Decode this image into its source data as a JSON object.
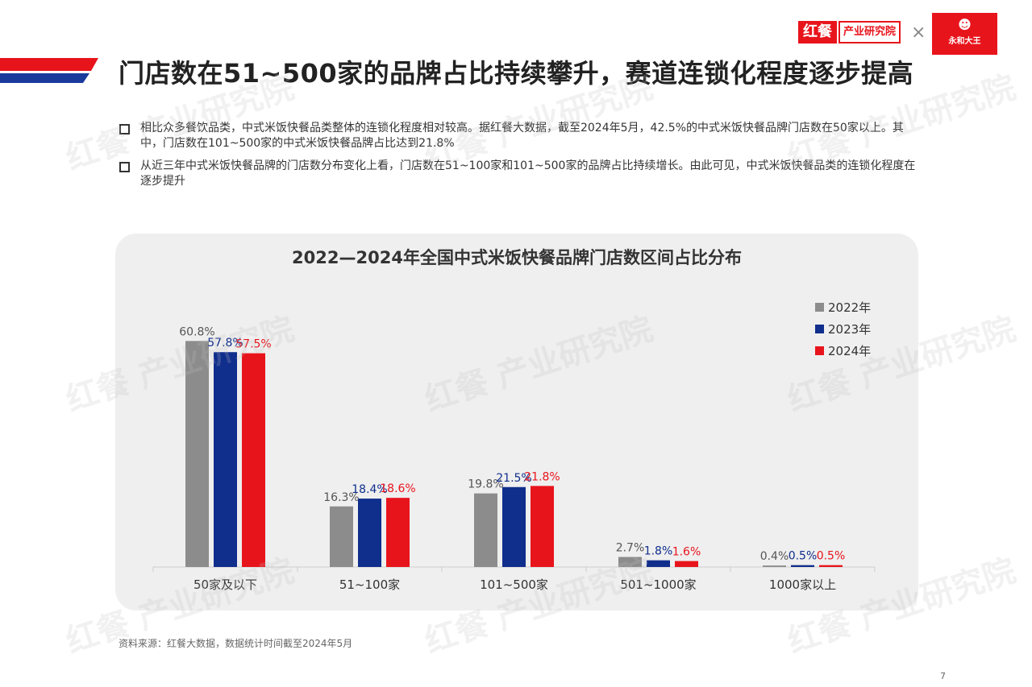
{
  "header": {
    "brand_red_box": "红餐",
    "brand_institute": "产业研究院",
    "separator": "×",
    "partner_logo_text": "永和大王",
    "title": "门店数在51~500家的品牌占比持续攀升，赛道连锁化程度逐步提高"
  },
  "bullets": [
    "相比众多餐饮品类，中式米饭快餐品类整体的连锁化程度相对较高。据红餐大数据，截至2024年5月，42.5%的中式米饭快餐品牌门店数在50家以上。其中，门店数在101~500家的中式米饭快餐品牌占比达到21.8%",
    "从近三年中式米饭快餐品牌的门店数分布变化上看，门店数在51~100家和101~500家的品牌占比持续增长。由此可见，中式米饭快餐品类的连锁化程度在逐步提升"
  ],
  "chart_data": {
    "type": "bar",
    "title": "2022—2024年全国中式米饭快餐品牌门店数区间占比分布",
    "xlabel": "",
    "ylabel": "",
    "categories": [
      "50家及以下",
      "51~100家",
      "101~500家",
      "501~1000家",
      "1000家以上"
    ],
    "series": [
      {
        "name": "2022年",
        "values": [
          60.8,
          16.3,
          19.8,
          2.7,
          0.4
        ],
        "labels": [
          "60.8%",
          "16.3%",
          "19.8%",
          "2.7%",
          "0.4%"
        ],
        "color": "#8c8c8c"
      },
      {
        "name": "2023年",
        "values": [
          57.8,
          18.4,
          21.5,
          1.8,
          0.5
        ],
        "labels": [
          "57.8%",
          "18.4%",
          "21.5%",
          "1.8%",
          "0.5%"
        ],
        "color": "#102e8c"
      },
      {
        "name": "2024年",
        "values": [
          57.5,
          18.6,
          21.8,
          1.6,
          0.5
        ],
        "labels": [
          "57.5%",
          "18.6%",
          "21.8%",
          "1.6%",
          "0.5%"
        ],
        "color": "#e8141c"
      }
    ],
    "ylim": [
      0,
      65
    ],
    "legend_position": "top-right",
    "grid": false
  },
  "footer": {
    "source": "资料来源：红餐大数据，数据统计时间截至2024年5月",
    "page_number": "7"
  },
  "watermark": "红餐 产业研究院",
  "colors": {
    "brand_red": "#e8141c",
    "brand_blue": "#102e8c",
    "panel_bg": "#efefef"
  }
}
